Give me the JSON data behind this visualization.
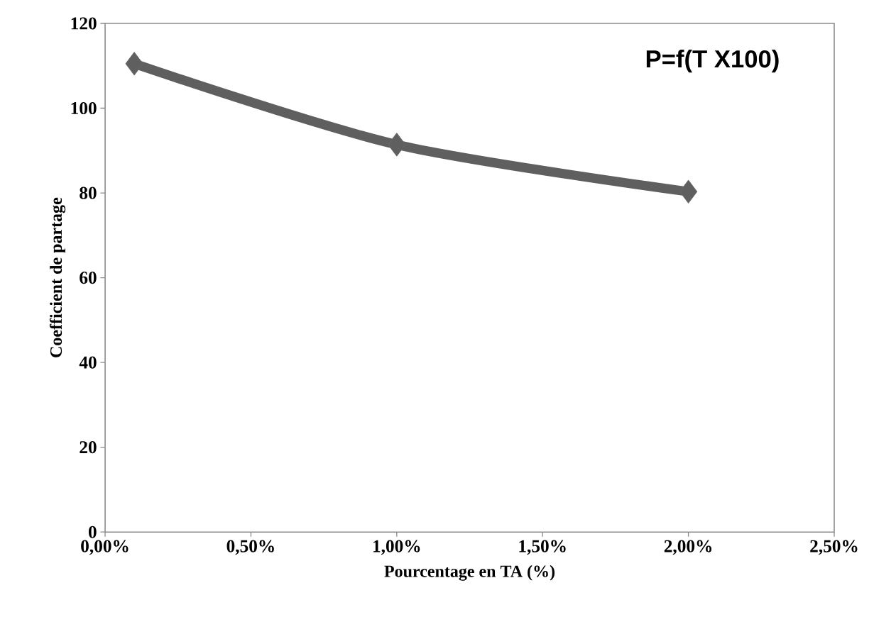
{
  "chart_data": {
    "type": "line",
    "xlabel": "Pourcentage en TA (%)",
    "ylabel": "Coefficient de partage",
    "annotations": [
      "P=f(T X100)"
    ],
    "x": [
      0.001,
      0.01,
      0.02
    ],
    "series": [
      {
        "color": "#5f5f5f",
        "values": [
          110.5,
          91.4,
          80.3
        ]
      }
    ],
    "marker": "diamond",
    "xlim": [
      0,
      0.025
    ],
    "ylim": [
      0,
      120
    ],
    "xticks": [
      {
        "value": 0,
        "label": "0,00%"
      },
      {
        "value": 0.005,
        "label": "0,50%"
      },
      {
        "value": 0.01,
        "label": "1,00%"
      },
      {
        "value": 0.015,
        "label": "1,50%"
      },
      {
        "value": 0.02,
        "label": "2,00%"
      },
      {
        "value": 0.025,
        "label": "2,50%"
      }
    ],
    "yticks": [
      0,
      20,
      40,
      60,
      80,
      100,
      120
    ]
  }
}
